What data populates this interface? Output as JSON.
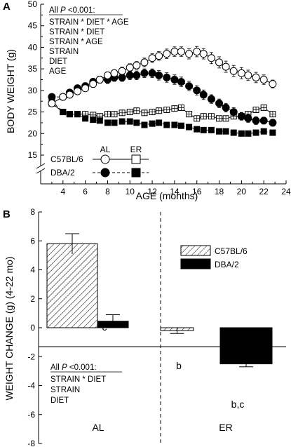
{
  "chart_data": [
    {
      "type": "line",
      "panel_label": "A",
      "xlabel": "AGE (months)",
      "ylabel": "BODY WEIGHT (g)",
      "xlim": [
        2,
        24
      ],
      "ylim": [
        10,
        50
      ],
      "axis_break": true,
      "x_ticks": [
        "4",
        "6",
        "8",
        "10",
        "12",
        "14",
        "16",
        "18",
        "20",
        "22",
        "24"
      ],
      "y_ticks": [
        "15",
        "20",
        "25",
        "30",
        "35",
        "40",
        "45",
        "50"
      ],
      "stats": {
        "header_prefix": "All ",
        "header_p": "P",
        "header_suffix": " <0.001:",
        "lines": [
          "STRAIN * DIET * AGE",
          "STRAIN * DIET",
          "STRAIN * AGE",
          "STRAIN",
          "DIET",
          "AGE"
        ]
      },
      "legend": {
        "col_al": "AL",
        "col_er": "ER",
        "row_c57": "C57BL/6",
        "row_dba": "DBA/2"
      },
      "series": [
        {
          "name": "C57BL/6 AL",
          "marker": "open-circle",
          "line": "solid",
          "x": [
            3,
            4,
            4.6,
            5.3,
            6,
            6.7,
            7.3,
            8,
            8.6,
            9.3,
            10,
            10.6,
            11.3,
            12,
            12.6,
            13.3,
            14,
            14.6,
            15.3,
            16,
            16.6,
            17.3,
            18,
            18.6,
            19.3,
            20,
            20.6,
            21.3,
            22,
            22.8
          ],
          "y": [
            27,
            28.5,
            29,
            29.8,
            30.5,
            31.5,
            32.5,
            33.5,
            34,
            34.5,
            35.3,
            35.8,
            36.5,
            37.5,
            38,
            38.5,
            39,
            39,
            38.5,
            39,
            38.5,
            37.5,
            36.5,
            35.5,
            34.5,
            34,
            33.5,
            33,
            32.5,
            31.5
          ],
          "err": [
            0.7,
            0.7,
            0.7,
            0.7,
            0.7,
            0.8,
            0.8,
            0.8,
            0.8,
            0.9,
            0.9,
            0.9,
            1.0,
            1.0,
            1.0,
            1.1,
            1.1,
            1.1,
            1.2,
            1.2,
            1.2,
            1.3,
            1.3,
            1.3,
            1.3,
            1.3,
            1.2,
            1.2,
            1.1,
            0.9
          ]
        },
        {
          "name": "DBA/2 AL",
          "marker": "filled-circle",
          "line": "dashed",
          "x": [
            3,
            4,
            4.6,
            5.3,
            6,
            6.7,
            7.3,
            8,
            8.6,
            9.3,
            10,
            10.6,
            11.3,
            12,
            12.6,
            13.3,
            14,
            14.6,
            15.3,
            16,
            16.6,
            17.3,
            18,
            18.6,
            19.3,
            20,
            20.6,
            21.3,
            22,
            22.8
          ],
          "y": [
            28.5,
            28.5,
            29.5,
            30.5,
            31,
            32,
            32.5,
            32.5,
            33,
            33,
            33.5,
            33.5,
            34,
            34,
            33.5,
            33,
            32.5,
            32,
            31,
            30,
            29,
            28,
            27,
            26,
            25,
            24,
            23.5,
            23,
            23,
            22.5
          ],
          "err": [
            0.7,
            0.7,
            0.7,
            0.8,
            0.8,
            0.8,
            0.8,
            0.9,
            0.9,
            0.9,
            1.0,
            1.0,
            1.0,
            1.0,
            1.1,
            1.1,
            1.1,
            1.1,
            1.1,
            1.1,
            1.1,
            1.0,
            1.0,
            1.0,
            1.0,
            0.9,
            0.9,
            0.9,
            0.8,
            0.8
          ]
        },
        {
          "name": "C57BL/6 ER",
          "marker": "open-square",
          "line": "solid",
          "x": [
            3,
            4,
            4.6,
            5.3,
            6,
            6.7,
            7.3,
            8,
            8.6,
            9.3,
            10,
            10.6,
            11.3,
            12,
            12.6,
            13.3,
            14,
            14.6,
            15.3,
            16,
            16.6,
            17.3,
            18,
            18.6,
            19.3,
            20,
            20.6,
            21.3,
            22,
            22.8
          ],
          "y": [
            27,
            25,
            24.5,
            24.5,
            24.5,
            24.3,
            24,
            24.5,
            24.5,
            24.8,
            25,
            25.3,
            24.8,
            25,
            25.3,
            25.5,
            25.8,
            26,
            24.5,
            23.5,
            24,
            24,
            23.5,
            23.5,
            24,
            24,
            24.5,
            25.5,
            26,
            24.5
          ],
          "err": [
            0.5,
            0.5,
            0.5,
            0.5,
            0.5,
            0.5,
            0.5,
            0.5,
            0.5,
            0.5,
            0.5,
            0.5,
            0.5,
            0.5,
            0.5,
            0.5,
            0.5,
            0.5,
            0.5,
            0.5,
            0.5,
            0.5,
            0.5,
            0.5,
            0.5,
            0.5,
            0.5,
            0.5,
            0.5,
            0.5
          ]
        },
        {
          "name": "DBA/2 ER",
          "marker": "filled-square",
          "line": "dashed",
          "x": [
            3,
            4,
            4.6,
            5.3,
            6,
            6.7,
            7.3,
            8,
            8.6,
            9.3,
            10,
            10.6,
            11.3,
            12,
            12.6,
            13.3,
            14,
            14.6,
            15.3,
            16,
            16.6,
            17.3,
            18,
            18.6,
            19.3,
            20,
            20.6,
            21.3,
            22,
            22.8
          ],
          "y": [
            27.5,
            25,
            24.5,
            24.5,
            23.5,
            23.2,
            23,
            22.5,
            22.5,
            22.8,
            22.8,
            22.5,
            22,
            22.3,
            22.5,
            22,
            22,
            21.8,
            21.5,
            21,
            20.8,
            20.8,
            20.5,
            20.5,
            20.2,
            20,
            20,
            20.2,
            20.5,
            20.2
          ],
          "err": [
            0.5,
            0.5,
            0.5,
            0.5,
            0.5,
            0.5,
            0.5,
            0.5,
            0.5,
            0.5,
            0.5,
            0.5,
            0.5,
            0.5,
            0.5,
            0.5,
            0.5,
            0.5,
            0.5,
            0.5,
            0.5,
            0.5,
            0.5,
            0.5,
            0.5,
            0.5,
            0.5,
            0.5,
            0.5,
            0.5
          ]
        }
      ]
    },
    {
      "type": "bar",
      "panel_label": "B",
      "ylabel": "WEIGHT CHANGE (g) (4-22 mo)",
      "ylim": [
        -8,
        8
      ],
      "y_ticks": [
        "-8",
        "-6",
        "-4",
        "-2",
        "0",
        "2",
        "4",
        "6",
        "8"
      ],
      "categories": [
        "AL",
        "ER"
      ],
      "legend": [
        "C57BL/6",
        "DBA/2"
      ],
      "series": [
        {
          "name": "C57BL/6",
          "pattern": "hatched",
          "values": [
            5.8,
            -0.2
          ],
          "err": [
            0.7,
            0.2
          ]
        },
        {
          "name": "DBA/2",
          "pattern": "solid-black",
          "values": [
            0.45,
            -2.5
          ],
          "err": [
            0.45,
            0.2
          ]
        }
      ],
      "annotations": {
        "al_dba": "c",
        "er_c57": "b",
        "er_dba": "b,c"
      },
      "stats": {
        "header_prefix": "All ",
        "header_p": "P",
        "header_suffix": " <0.001:",
        "lines": [
          "STRAIN * DIET",
          "STRAIN",
          "DIET"
        ]
      }
    }
  ]
}
